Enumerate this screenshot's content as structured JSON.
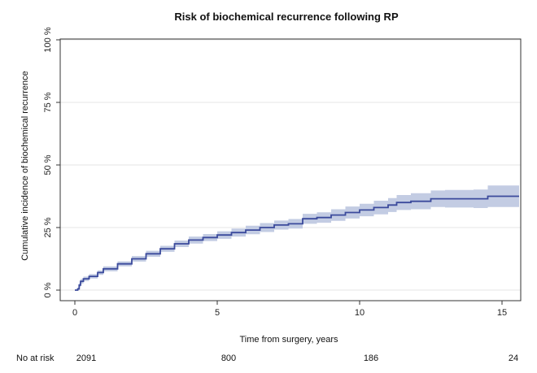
{
  "chart_data": {
    "type": "line",
    "title": "Risk of biochemical recurrence following RP",
    "xlabel": "Time from surgery, years",
    "ylabel": "Cumulative incidence of biochemical recurrence",
    "xlim": [
      0,
      15.6
    ],
    "ylim": [
      0,
      100
    ],
    "x_ticks": [
      0,
      5,
      10,
      15
    ],
    "x_tick_labels": [
      "0",
      "5",
      "10",
      "15"
    ],
    "y_ticks": [
      0,
      25,
      50,
      75,
      100
    ],
    "y_tick_labels": [
      "0 %",
      "25 %",
      "50 %",
      "75 %",
      "100 %"
    ],
    "grid": "horizontal",
    "colors": {
      "line": "#3b4a9c",
      "band": "#c3cce3",
      "grid": "#e6e6e6"
    },
    "series": [
      {
        "x": [
          0,
          0.1,
          0.15,
          0.2,
          0.3,
          0.5,
          0.8,
          1.0,
          1.5,
          2.0,
          2.5,
          3.0,
          3.5,
          4.0,
          4.5,
          5.0,
          5.5,
          6.0,
          6.5,
          7.0,
          7.5,
          8.0,
          8.5,
          9.0,
          9.5,
          10.0,
          10.5,
          11.0,
          11.3,
          11.8,
          12.5,
          13.0,
          14.0,
          14.5,
          15.6
        ],
        "y": [
          0,
          0.5,
          2,
          3.5,
          4.5,
          5.5,
          7,
          8.5,
          10.5,
          12.5,
          14.5,
          16.5,
          18.5,
          20,
          21,
          22,
          23,
          24,
          25,
          26,
          26.5,
          28.5,
          29,
          30,
          31,
          32,
          33,
          34,
          35,
          35.5,
          36.5,
          36.5,
          36.5,
          37.5,
          37.5
        ],
        "lower": [
          0,
          0,
          1.2,
          2.6,
          3.6,
          4.6,
          6.1,
          7.5,
          9.5,
          11.4,
          13.3,
          15.3,
          17.2,
          18.6,
          19.6,
          20.5,
          21.4,
          22.3,
          23.2,
          24.2,
          24.6,
          26.5,
          26.9,
          27.7,
          28.6,
          29.5,
          30.3,
          31.2,
          32.0,
          32.3,
          33.2,
          33.0,
          32.8,
          33.2,
          33.2
        ],
        "upper": [
          0,
          1.0,
          2.8,
          4.4,
          5.4,
          6.4,
          7.9,
          9.5,
          11.5,
          13.6,
          15.7,
          17.7,
          19.8,
          21.4,
          22.4,
          23.5,
          24.6,
          25.7,
          26.8,
          27.8,
          28.4,
          30.5,
          31.1,
          32.3,
          33.4,
          34.5,
          35.7,
          36.8,
          38.0,
          38.7,
          39.8,
          40.0,
          40.2,
          41.8,
          41.8
        ]
      }
    ],
    "risk_table": {
      "label": "No at risk",
      "times": [
        0,
        5,
        10,
        15
      ],
      "values": [
        "2091",
        "800",
        "186",
        "24"
      ]
    }
  }
}
